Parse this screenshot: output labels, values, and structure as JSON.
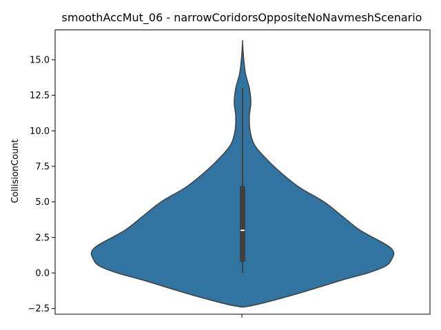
{
  "chart_data": {
    "type": "violin",
    "title": "smoothAccMut_06 - narrowCoridorsOppositeNoNavmeshScenario",
    "xlabel": "",
    "ylabel": "CollisionCount",
    "ylim": [
      -2.9,
      17.1
    ],
    "yticks": [
      -2.5,
      0.0,
      2.5,
      5.0,
      7.5,
      10.0,
      12.5,
      15.0
    ],
    "ytick_labels": [
      "−2.5",
      "0.0",
      "2.5",
      "5.0",
      "7.5",
      "10.0",
      "12.5",
      "15.0"
    ],
    "grid": false,
    "legend": "none",
    "colors": {
      "violin_fill": "#3274a1",
      "violin_edge": "#3f3f3f",
      "box": "#3f3f3f",
      "median": "#ffffff"
    },
    "violin": {
      "kde_max_halfwidth_fraction": 1.0,
      "density_profile": [
        {
          "y": -2.3,
          "w": 0.06
        },
        {
          "y": -1.5,
          "w": 0.35
        },
        {
          "y": -0.5,
          "w": 0.66
        },
        {
          "y": 0.0,
          "w": 0.83
        },
        {
          "y": 0.5,
          "w": 0.95
        },
        {
          "y": 1.0,
          "w": 0.99
        },
        {
          "y": 1.5,
          "w": 1.0
        },
        {
          "y": 2.0,
          "w": 0.95
        },
        {
          "y": 3.0,
          "w": 0.78
        },
        {
          "y": 4.0,
          "w": 0.66
        },
        {
          "y": 5.0,
          "w": 0.54
        },
        {
          "y": 6.0,
          "w": 0.38
        },
        {
          "y": 7.0,
          "w": 0.26
        },
        {
          "y": 8.0,
          "w": 0.16
        },
        {
          "y": 9.0,
          "w": 0.08
        },
        {
          "y": 10.0,
          "w": 0.05
        },
        {
          "y": 11.0,
          "w": 0.045
        },
        {
          "y": 12.0,
          "w": 0.055
        },
        {
          "y": 13.0,
          "w": 0.045
        },
        {
          "y": 14.0,
          "w": 0.02
        },
        {
          "y": 15.0,
          "w": 0.008
        },
        {
          "y": 16.2,
          "w": 0.0
        }
      ]
    },
    "box": {
      "whisker_low": 0.0,
      "q1": 0.8,
      "median": 3.0,
      "q3": 6.1,
      "whisker_high": 13.0
    }
  }
}
